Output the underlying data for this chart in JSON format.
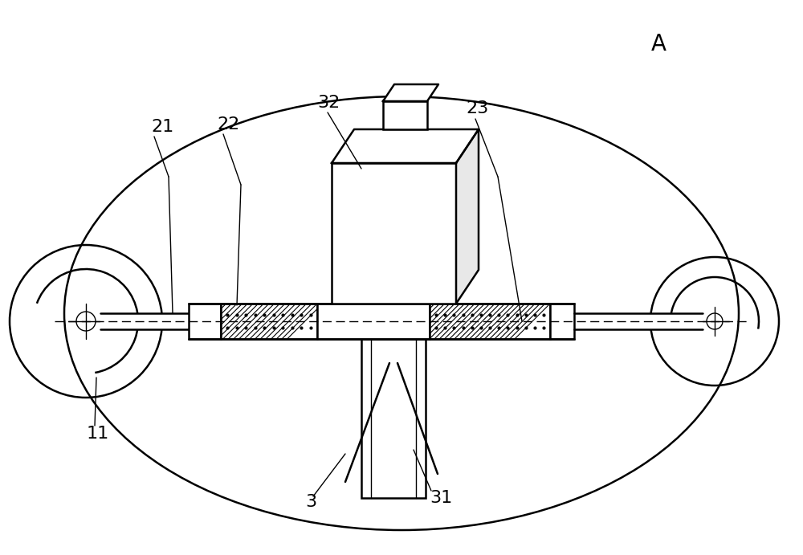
{
  "title_label": "A",
  "bg_color": "#ffffff",
  "line_color": "#000000",
  "label_fontsize": 16,
  "title_fontsize": 20
}
